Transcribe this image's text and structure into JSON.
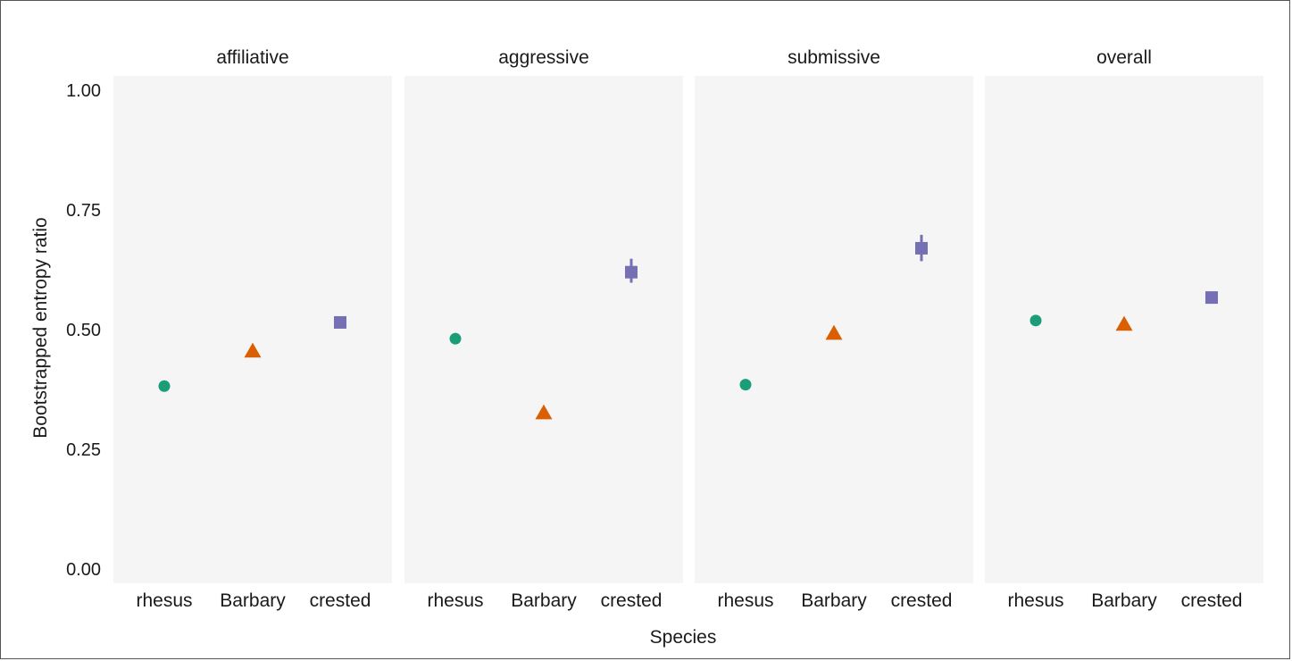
{
  "chart_data": {
    "type": "scatter",
    "facets": [
      "affiliative",
      "aggressive",
      "submissive",
      "overall"
    ],
    "categories": [
      "rhesus",
      "Barbary",
      "crested"
    ],
    "xlabel": "Species",
    "ylabel": "Bootstrapped entropy ratio",
    "ylim": [
      -0.03,
      1.03
    ],
    "yticks": [
      "0.00",
      "0.25",
      "0.50",
      "0.75",
      "1.00"
    ],
    "grid": false,
    "legend": "none",
    "colors": {
      "rhesus": "#1b9e77",
      "Barbary": "#d95f02",
      "crested": "#7570b3"
    },
    "shapes": {
      "rhesus": "circle",
      "Barbary": "triangle",
      "crested": "square"
    },
    "panel_background": "#f5f5f5",
    "series": [
      {
        "facet": "affiliative",
        "points": [
          {
            "species": "rhesus",
            "y": 0.382,
            "ymin": 0.376,
            "ymax": 0.388
          },
          {
            "species": "Barbary",
            "y": 0.455,
            "ymin": 0.448,
            "ymax": 0.462
          },
          {
            "species": "crested",
            "y": 0.515,
            "ymin": 0.503,
            "ymax": 0.527
          }
        ]
      },
      {
        "facet": "aggressive",
        "points": [
          {
            "species": "rhesus",
            "y": 0.481,
            "ymin": 0.475,
            "ymax": 0.487
          },
          {
            "species": "Barbary",
            "y": 0.326,
            "ymin": 0.319,
            "ymax": 0.333
          },
          {
            "species": "crested",
            "y": 0.62,
            "ymin": 0.598,
            "ymax": 0.648
          }
        ]
      },
      {
        "facet": "submissive",
        "points": [
          {
            "species": "rhesus",
            "y": 0.385,
            "ymin": 0.379,
            "ymax": 0.391
          },
          {
            "species": "Barbary",
            "y": 0.492,
            "ymin": 0.485,
            "ymax": 0.499
          },
          {
            "species": "crested",
            "y": 0.67,
            "ymin": 0.643,
            "ymax": 0.698
          }
        ]
      },
      {
        "facet": "overall",
        "points": [
          {
            "species": "rhesus",
            "y": 0.519,
            "ymin": 0.515,
            "ymax": 0.523
          },
          {
            "species": "Barbary",
            "y": 0.511,
            "ymin": 0.506,
            "ymax": 0.516
          },
          {
            "species": "crested",
            "y": 0.567,
            "ymin": 0.561,
            "ymax": 0.573
          }
        ]
      }
    ]
  }
}
